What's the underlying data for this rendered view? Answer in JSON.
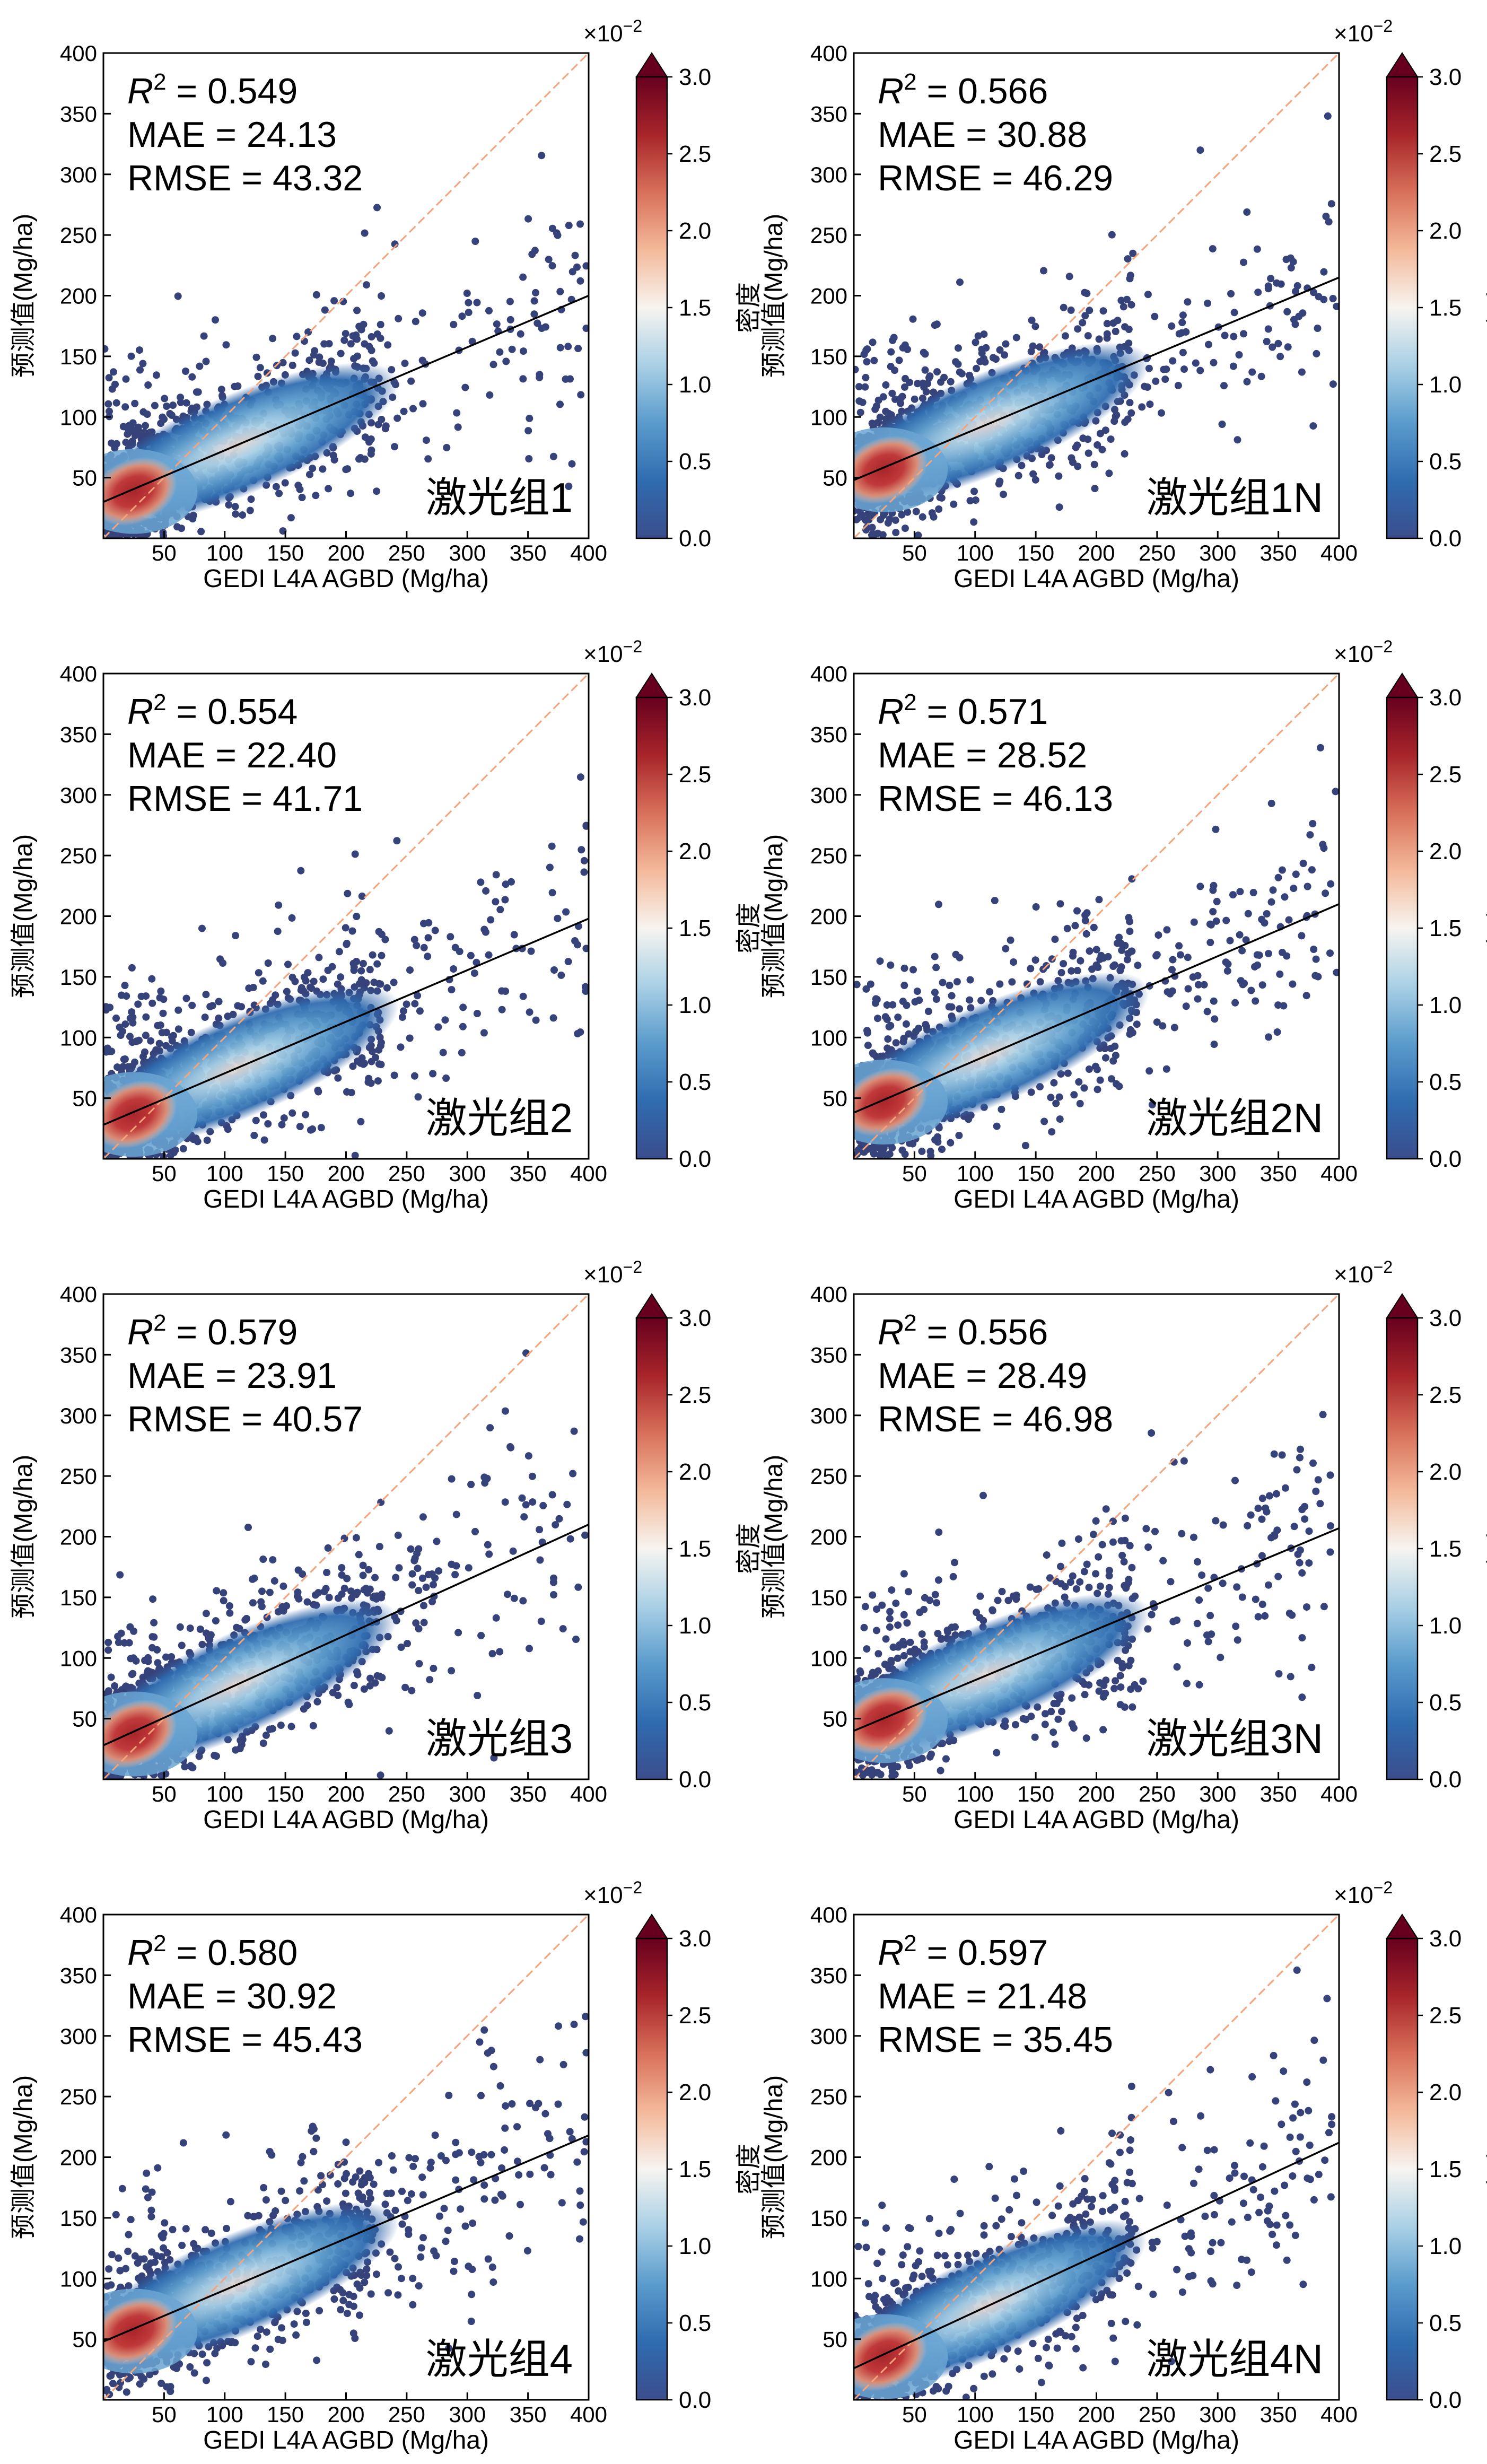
{
  "figure": {
    "x_axis_label": "GEDI  L4A  AGBD (Mg/ha)",
    "y_axis_label": "预测值(Mg/ha)",
    "colorbar_label": "密度",
    "colorbar_multiplier": "×10",
    "colorbar_exponent": "−2",
    "colorbar_ticks": [
      "0.0",
      "0.5",
      "1.0",
      "1.5",
      "2.0",
      "2.5",
      "3.0"
    ],
    "x_ticks": [
      "50",
      "100",
      "150",
      "200",
      "250",
      "300",
      "350",
      "400"
    ],
    "y_ticks": [
      "50",
      "100",
      "150",
      "200",
      "250",
      "300",
      "350",
      "400"
    ],
    "colormap": [
      "#3b4d8c",
      "#2f6cb0",
      "#5a9bcc",
      "#a9d0e6",
      "#f7f4f0",
      "#f4b99a",
      "#d8705a",
      "#a8252a",
      "#67001f"
    ],
    "one_to_one_color": "#f4a37a",
    "fit_line_color": "#000000",
    "point_color": "#36427a"
  },
  "chart_data": [
    {
      "type": "scatter",
      "panel": "激光组1",
      "metric_r2_label": "R",
      "metric_r2_text": " = 0.549",
      "metric_mae_text": "MAE = 24.13",
      "metric_rmse_text": "RMSE = 43.32",
      "r2": 0.549,
      "mae": 24.13,
      "rmse": 43.32,
      "fit_line": {
        "x": [
          0,
          400
        ],
        "y": [
          30,
          200
        ]
      },
      "one_to_one": {
        "x": [
          0,
          400
        ],
        "y": [
          0,
          400
        ]
      },
      "xlim": [
        0,
        400
      ],
      "ylim": [
        0,
        400
      ],
      "colorbar_range": [
        0.0,
        0.03
      ]
    },
    {
      "type": "scatter",
      "panel": "激光组1N",
      "metric_r2_label": "R",
      "metric_r2_text": " = 0.566",
      "metric_mae_text": "MAE = 30.88",
      "metric_rmse_text": "RMSE = 46.29",
      "r2": 0.566,
      "mae": 30.88,
      "rmse": 46.29,
      "fit_line": {
        "x": [
          0,
          400
        ],
        "y": [
          48,
          215
        ]
      },
      "one_to_one": {
        "x": [
          0,
          400
        ],
        "y": [
          0,
          400
        ]
      },
      "xlim": [
        0,
        400
      ],
      "ylim": [
        0,
        400
      ],
      "colorbar_range": [
        0.0,
        0.03
      ]
    },
    {
      "type": "scatter",
      "panel": "激光组2",
      "metric_r2_label": "R",
      "metric_r2_text": " = 0.554",
      "metric_mae_text": "MAE = 22.40",
      "metric_rmse_text": "RMSE = 41.71",
      "r2": 0.554,
      "mae": 22.4,
      "rmse": 41.71,
      "fit_line": {
        "x": [
          0,
          400
        ],
        "y": [
          28,
          198
        ]
      },
      "one_to_one": {
        "x": [
          0,
          400
        ],
        "y": [
          0,
          400
        ]
      },
      "xlim": [
        0,
        400
      ],
      "ylim": [
        0,
        400
      ],
      "colorbar_range": [
        0.0,
        0.03
      ]
    },
    {
      "type": "scatter",
      "panel": "激光组2N",
      "metric_r2_label": "R",
      "metric_r2_text": " = 0.571",
      "metric_mae_text": "MAE = 28.52",
      "metric_rmse_text": "RMSE = 46.13",
      "r2": 0.571,
      "mae": 28.52,
      "rmse": 46.13,
      "fit_line": {
        "x": [
          0,
          400
        ],
        "y": [
          38,
          210
        ]
      },
      "one_to_one": {
        "x": [
          0,
          400
        ],
        "y": [
          0,
          400
        ]
      },
      "xlim": [
        0,
        400
      ],
      "ylim": [
        0,
        400
      ],
      "colorbar_range": [
        0.0,
        0.03
      ]
    },
    {
      "type": "scatter",
      "panel": "激光组3",
      "metric_r2_label": "R",
      "metric_r2_text": " = 0.579",
      "metric_mae_text": "MAE = 23.91",
      "metric_rmse_text": "RMSE = 40.57",
      "r2": 0.579,
      "mae": 23.91,
      "rmse": 40.57,
      "fit_line": {
        "x": [
          0,
          400
        ],
        "y": [
          28,
          210
        ]
      },
      "one_to_one": {
        "x": [
          0,
          400
        ],
        "y": [
          0,
          400
        ]
      },
      "xlim": [
        0,
        400
      ],
      "ylim": [
        0,
        400
      ],
      "colorbar_range": [
        0.0,
        0.03
      ]
    },
    {
      "type": "scatter",
      "panel": "激光组3N",
      "metric_r2_label": "R",
      "metric_r2_text": " = 0.556",
      "metric_mae_text": "MAE = 28.49",
      "metric_rmse_text": "RMSE = 46.98",
      "r2": 0.556,
      "mae": 28.49,
      "rmse": 46.98,
      "fit_line": {
        "x": [
          0,
          400
        ],
        "y": [
          40,
          207
        ]
      },
      "one_to_one": {
        "x": [
          0,
          400
        ],
        "y": [
          0,
          400
        ]
      },
      "xlim": [
        0,
        400
      ],
      "ylim": [
        0,
        400
      ],
      "colorbar_range": [
        0.0,
        0.03
      ]
    },
    {
      "type": "scatter",
      "panel": "激光组4",
      "metric_r2_label": "R",
      "metric_r2_text": " = 0.580",
      "metric_mae_text": "MAE = 30.92",
      "metric_rmse_text": "RMSE = 45.43",
      "r2": 0.58,
      "mae": 30.92,
      "rmse": 45.43,
      "fit_line": {
        "x": [
          0,
          400
        ],
        "y": [
          48,
          218
        ]
      },
      "one_to_one": {
        "x": [
          0,
          400
        ],
        "y": [
          0,
          400
        ]
      },
      "xlim": [
        0,
        400
      ],
      "ylim": [
        0,
        400
      ],
      "colorbar_range": [
        0.0,
        0.03
      ]
    },
    {
      "type": "scatter",
      "panel": "激光组4N",
      "metric_r2_label": "R",
      "metric_r2_text": " = 0.597",
      "metric_mae_text": "MAE = 21.48",
      "metric_rmse_text": "RMSE = 35.45",
      "r2": 0.597,
      "mae": 21.48,
      "rmse": 35.45,
      "fit_line": {
        "x": [
          0,
          400
        ],
        "y": [
          26,
          212
        ]
      },
      "one_to_one": {
        "x": [
          0,
          400
        ],
        "y": [
          0,
          400
        ]
      },
      "xlim": [
        0,
        400
      ],
      "ylim": [
        0,
        400
      ],
      "colorbar_range": [
        0.0,
        0.03
      ]
    }
  ]
}
